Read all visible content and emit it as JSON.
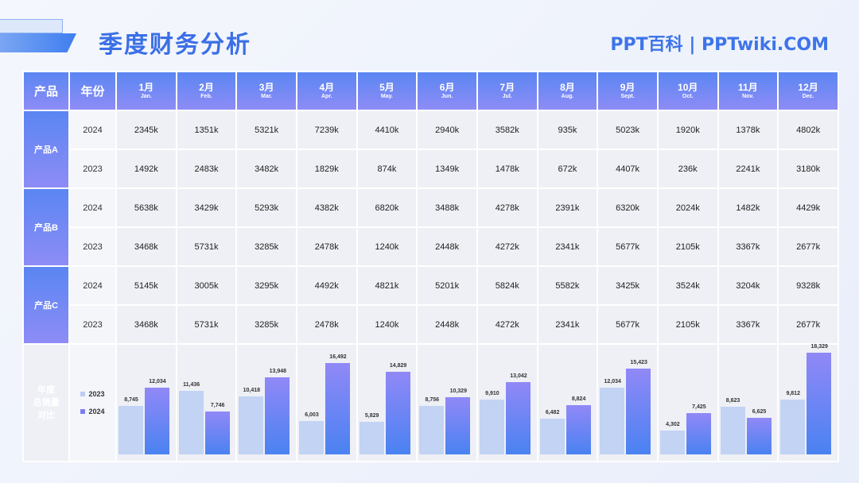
{
  "title": "季度财务分析",
  "brand": "PPT百科 | PPTwiki.COM",
  "header": {
    "product": "产品",
    "year": "年份"
  },
  "months": [
    {
      "cn": "1月",
      "en": "Jan."
    },
    {
      "cn": "2月",
      "en": "Feb."
    },
    {
      "cn": "3月",
      "en": "Mar."
    },
    {
      "cn": "4月",
      "en": "Apr."
    },
    {
      "cn": "5月",
      "en": "May."
    },
    {
      "cn": "6月",
      "en": "Jun."
    },
    {
      "cn": "7月",
      "en": "Jul."
    },
    {
      "cn": "8月",
      "en": "Aug."
    },
    {
      "cn": "9月",
      "en": "Sept."
    },
    {
      "cn": "10月",
      "en": "Oct."
    },
    {
      "cn": "11月",
      "en": "Nov."
    },
    {
      "cn": "12月",
      "en": "Dec."
    }
  ],
  "products": [
    {
      "name": "产品A",
      "rows": [
        {
          "year": "2024",
          "values": [
            "2345k",
            "1351k",
            "5321k",
            "7239k",
            "4410k",
            "2940k",
            "3582k",
            "935k",
            "5023k",
            "1920k",
            "1378k",
            "4802k"
          ]
        },
        {
          "year": "2023",
          "values": [
            "1492k",
            "2483k",
            "3482k",
            "1829k",
            "874k",
            "1349k",
            "1478k",
            "672k",
            "4407k",
            "236k",
            "2241k",
            "3180k"
          ]
        }
      ]
    },
    {
      "name": "产品B",
      "rows": [
        {
          "year": "2024",
          "values": [
            "5638k",
            "3429k",
            "5293k",
            "4382k",
            "6820k",
            "3488k",
            "4278k",
            "2391k",
            "6320k",
            "2024k",
            "1482k",
            "4429k"
          ]
        },
        {
          "year": "2023",
          "values": [
            "3468k",
            "5731k",
            "3285k",
            "2478k",
            "1240k",
            "2448k",
            "4272k",
            "2341k",
            "5677k",
            "2105k",
            "3367k",
            "2677k"
          ]
        }
      ]
    },
    {
      "name": "产品C",
      "rows": [
        {
          "year": "2024",
          "values": [
            "5145k",
            "3005k",
            "3295k",
            "4492k",
            "4821k",
            "5201k",
            "5824k",
            "5582k",
            "3425k",
            "3524k",
            "3204k",
            "9328k"
          ]
        },
        {
          "year": "2023",
          "values": [
            "3468k",
            "5731k",
            "3285k",
            "2478k",
            "1240k",
            "2448k",
            "4272k",
            "2341k",
            "5677k",
            "2105k",
            "3367k",
            "2677k"
          ]
        }
      ]
    }
  ],
  "summary_label": [
    "年度",
    "总销量",
    "对比"
  ],
  "chart_data": {
    "type": "bar",
    "categories": [
      "1月",
      "2月",
      "3月",
      "4月",
      "5月",
      "6月",
      "7月",
      "8月",
      "9月",
      "10月",
      "11月",
      "12月"
    ],
    "series": [
      {
        "name": "2023",
        "values": [
          8745,
          11436,
          10418,
          6003,
          5829,
          8756,
          9910,
          6482,
          12034,
          4302,
          8623,
          9812
        ],
        "color": "#c2d3f4"
      },
      {
        "name": "2024",
        "values": [
          12034,
          7746,
          13948,
          16492,
          14829,
          10329,
          13042,
          8824,
          15423,
          7425,
          6625,
          18329
        ],
        "color": "#7b7ff1"
      }
    ],
    "labels_2023": [
      "8,745",
      "11,436",
      "10,418",
      "6,003",
      "5,829",
      "8,756",
      "9,910",
      "6,482",
      "12,034",
      "4,302",
      "8,623",
      "9,812"
    ],
    "labels_2024": [
      "12,034",
      "7,746",
      "13,948",
      "16,492",
      "14,829",
      "10,329",
      "13,042",
      "8,824",
      "15,423",
      "7,425",
      "6,625",
      "18,329"
    ],
    "ylim": [
      0,
      18329
    ]
  }
}
